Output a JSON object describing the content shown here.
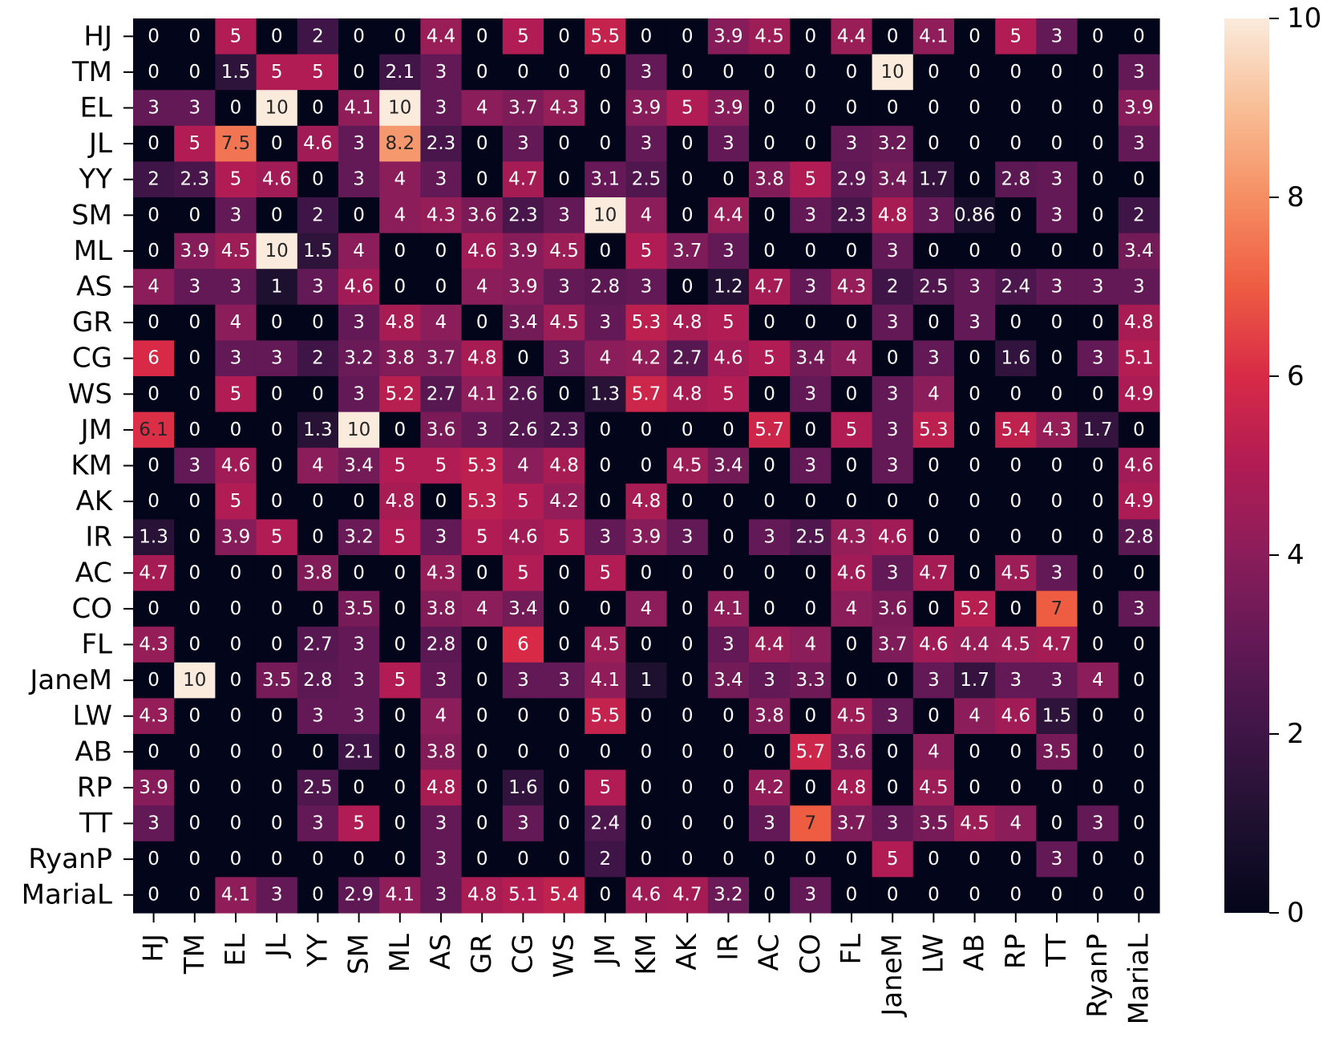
{
  "chart_data": {
    "type": "heatmap",
    "title": "",
    "xlabel": "",
    "ylabel": "",
    "x_categories": [
      "HJ",
      "TM",
      "EL",
      "JL",
      "YY",
      "SM",
      "ML",
      "AS",
      "GR",
      "CG",
      "WS",
      "JM",
      "KM",
      "AK",
      "IR",
      "AC",
      "CO",
      "FL",
      "JaneM",
      "LW",
      "AB",
      "RP",
      "TT",
      "RyanP",
      "MariaL"
    ],
    "y_categories": [
      "HJ",
      "TM",
      "EL",
      "JL",
      "YY",
      "SM",
      "ML",
      "AS",
      "GR",
      "CG",
      "WS",
      "JM",
      "KM",
      "AK",
      "IR",
      "AC",
      "CO",
      "FL",
      "JaneM",
      "LW",
      "AB",
      "RP",
      "TT",
      "RyanP",
      "MariaL"
    ],
    "values": [
      [
        0,
        0,
        5,
        0,
        2,
        0,
        0,
        4.4,
        0,
        5,
        0,
        5.5,
        0,
        0,
        3.9,
        4.5,
        0,
        4.4,
        0,
        4.1,
        0,
        5,
        3,
        0,
        0
      ],
      [
        0,
        0,
        1.5,
        5,
        5,
        0,
        2.1,
        3,
        0,
        0,
        0,
        0,
        3,
        0,
        0,
        0,
        0,
        0,
        10,
        0,
        0,
        0,
        0,
        0,
        3
      ],
      [
        3,
        3,
        0,
        10,
        0,
        4.1,
        10,
        3,
        4,
        3.7,
        4.3,
        0,
        3.9,
        5,
        3.9,
        0,
        0,
        0,
        0,
        0,
        0,
        0,
        0,
        0,
        3.9
      ],
      [
        0,
        5,
        7.5,
        0,
        4.6,
        3,
        8.2,
        2.3,
        0,
        3,
        0,
        0,
        3,
        0,
        3,
        0,
        0,
        3,
        3.2,
        0,
        0,
        0,
        0,
        0,
        3
      ],
      [
        2,
        2.3,
        5,
        4.6,
        0,
        3,
        4,
        3,
        0,
        4.7,
        0,
        3.1,
        2.5,
        0,
        0,
        3.8,
        5,
        2.9,
        3.4,
        1.7,
        0,
        2.8,
        3,
        0,
        0
      ],
      [
        0,
        0,
        3,
        0,
        2,
        0,
        4,
        4.3,
        3.6,
        2.3,
        3,
        10,
        4,
        0,
        4.4,
        0,
        3,
        2.3,
        4.8,
        3,
        0.86,
        0,
        3,
        0,
        2
      ],
      [
        0,
        3.9,
        4.5,
        10,
        1.5,
        4,
        0,
        0,
        4.6,
        3.9,
        4.5,
        0,
        5,
        3.7,
        3,
        0,
        0,
        0,
        3,
        0,
        0,
        0,
        0,
        0,
        3.4
      ],
      [
        4,
        3,
        3,
        1,
        3,
        4.6,
        0,
        0,
        4,
        3.9,
        3,
        2.8,
        3,
        0,
        1.2,
        4.7,
        3,
        4.3,
        2,
        2.5,
        3,
        2.4,
        3,
        3,
        3
      ],
      [
        0,
        0,
        4,
        0,
        0,
        3,
        4.8,
        4,
        0,
        3.4,
        4.5,
        3,
        5.3,
        4.8,
        5,
        0,
        0,
        0,
        3,
        0,
        3,
        0,
        0,
        0,
        4.8
      ],
      [
        6,
        0,
        3,
        3,
        2,
        3.2,
        3.8,
        3.7,
        4.8,
        0,
        3,
        4,
        4.2,
        2.7,
        4.6,
        5,
        3.4,
        4,
        0,
        3,
        0,
        1.6,
        0,
        3,
        5.1
      ],
      [
        0,
        0,
        5,
        0,
        0,
        3,
        5.2,
        2.7,
        4.1,
        2.6,
        0,
        1.3,
        5.7,
        4.8,
        5,
        0,
        3,
        0,
        3,
        4,
        0,
        0,
        0,
        0,
        4.9
      ],
      [
        6.1,
        0,
        0,
        0,
        1.3,
        10,
        0,
        3.6,
        3,
        2.6,
        2.3,
        0,
        0,
        0,
        0,
        5.7,
        0,
        5,
        3,
        5.3,
        0,
        5.4,
        4.3,
        1.7,
        0
      ],
      [
        0,
        3,
        4.6,
        0,
        4,
        3.4,
        5,
        5,
        5.3,
        4,
        4.8,
        0,
        0,
        4.5,
        3.4,
        0,
        3,
        0,
        3,
        0,
        0,
        0,
        0,
        0,
        4.6
      ],
      [
        0,
        0,
        5,
        0,
        0,
        0,
        4.8,
        0,
        5.3,
        5,
        4.2,
        0,
        4.8,
        0,
        0,
        0,
        0,
        0,
        0,
        0,
        0,
        0,
        0,
        0,
        4.9
      ],
      [
        1.3,
        0,
        3.9,
        5,
        0,
        3.2,
        5,
        3,
        5,
        4.6,
        5,
        3,
        3.9,
        3,
        0,
        3,
        2.5,
        4.3,
        4.6,
        0,
        0,
        0,
        0,
        0,
        2.8
      ],
      [
        4.7,
        0,
        0,
        0,
        3.8,
        0,
        0,
        4.3,
        0,
        5,
        0,
        5,
        0,
        0,
        0,
        0,
        0,
        4.6,
        3,
        4.7,
        0,
        4.5,
        3,
        0,
        0
      ],
      [
        0,
        0,
        0,
        0,
        0,
        3.5,
        0,
        3.8,
        4,
        3.4,
        0,
        0,
        4,
        0,
        4.1,
        0,
        0,
        4,
        3.6,
        0,
        5.2,
        0,
        7,
        0,
        3
      ],
      [
        4.3,
        0,
        0,
        0,
        2.7,
        3,
        0,
        2.8,
        0,
        6,
        0,
        4.5,
        0,
        0,
        3,
        4.4,
        4,
        0,
        3.7,
        4.6,
        4.4,
        4.5,
        4.7,
        0,
        0
      ],
      [
        0,
        10,
        0,
        3.5,
        2.8,
        3,
        5,
        3,
        0,
        3,
        3,
        4.1,
        1,
        0,
        3.4,
        3,
        3.3,
        0,
        0,
        3,
        1.7,
        3,
        3,
        4,
        0
      ],
      [
        4.3,
        0,
        0,
        0,
        3,
        3,
        0,
        4,
        0,
        0,
        0,
        5.5,
        0,
        0,
        0,
        3.8,
        0,
        4.5,
        3,
        0,
        4,
        4.6,
        1.5,
        0,
        0
      ],
      [
        0,
        0,
        0,
        0,
        0,
        2.1,
        0,
        3.8,
        0,
        0,
        0,
        0,
        0,
        0,
        0,
        0,
        5.7,
        3.6,
        0,
        4,
        0,
        0,
        3.5,
        0,
        0
      ],
      [
        3.9,
        0,
        0,
        0,
        2.5,
        0,
        0,
        4.8,
        0,
        1.6,
        0,
        5,
        0,
        0,
        0,
        4.2,
        0,
        4.8,
        0,
        4.5,
        0,
        0,
        0,
        0,
        0
      ],
      [
        3,
        0,
        0,
        0,
        3,
        5,
        0,
        3,
        0,
        3,
        0,
        2.4,
        0,
        0,
        0,
        3,
        7,
        3.7,
        3,
        3.5,
        4.5,
        4,
        0,
        3,
        0
      ],
      [
        0,
        0,
        0,
        0,
        0,
        0,
        0,
        3,
        0,
        0,
        0,
        2,
        0,
        0,
        0,
        0,
        0,
        0,
        5,
        0,
        0,
        0,
        3,
        0,
        0
      ],
      [
        0,
        0,
        4.1,
        3,
        0,
        2.9,
        4.1,
        3,
        4.8,
        5.1,
        5.4,
        0,
        4.6,
        4.7,
        3.2,
        0,
        3,
        0,
        0,
        0,
        0,
        0,
        0,
        0,
        0
      ]
    ],
    "vmin": 0,
    "vmax": 10,
    "colormap": "rocket",
    "colorbar": {
      "ticks": [
        0,
        2,
        4,
        6,
        8,
        10
      ],
      "tick_labels": [
        "0",
        "2",
        "4",
        "6",
        "8",
        "10"
      ],
      "location": "right"
    },
    "annotations": true
  }
}
